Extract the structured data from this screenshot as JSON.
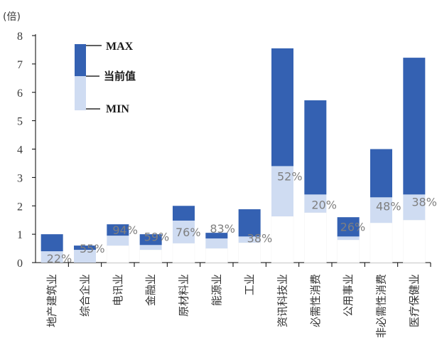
{
  "chart_data": {
    "type": "bar",
    "unit_label": "(倍)",
    "ylim": [
      0,
      8
    ],
    "yticks": [
      0,
      1,
      2,
      3,
      4,
      5,
      6,
      7,
      8
    ],
    "legend": {
      "max": "MAX",
      "current": "当前值",
      "min": "MIN"
    },
    "colors": {
      "max": "#3461b2",
      "current": "#cfdcf2",
      "base": "#ffffff",
      "axis": "#000000"
    },
    "categories": [
      "地产建筑业",
      "综合企业",
      "电讯业",
      "金融业",
      "原材料业",
      "能源业",
      "工业",
      "资讯科技业",
      "必需性消费",
      "公用事业",
      "非必需性消费",
      "医疗保健业"
    ],
    "max": [
      1.0,
      0.6,
      1.35,
      1.0,
      2.0,
      1.05,
      1.88,
      7.55,
      5.72,
      1.6,
      4.0,
      7.22
    ],
    "current": [
      0.4,
      0.45,
      0.95,
      0.62,
      1.48,
      0.85,
      0.92,
      3.4,
      2.4,
      0.92,
      2.3,
      2.4
    ],
    "min": [
      0.0,
      0.0,
      0.6,
      0.45,
      0.68,
      0.5,
      0.7,
      1.63,
      1.76,
      0.8,
      1.4,
      1.5
    ],
    "percentiles": [
      "22%",
      "55%",
      "94%",
      "59%",
      "76%",
      "83%",
      "38%",
      "52%",
      "20%",
      "26%",
      "48%",
      "38%"
    ]
  }
}
